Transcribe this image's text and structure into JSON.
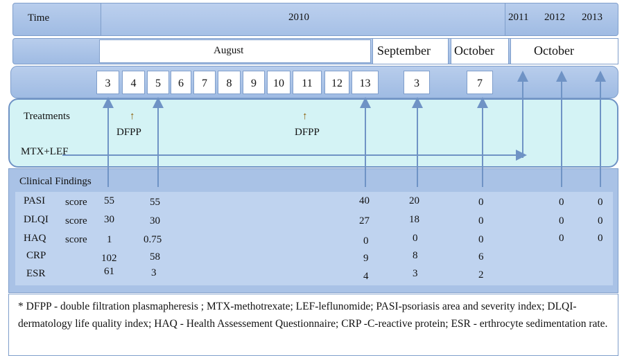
{
  "header": {
    "time_label": "Time",
    "year_2010": "2010",
    "year_2011": "2011",
    "year_2012": "2012",
    "year_2013": "2013"
  },
  "months": {
    "august": "August",
    "september": "September",
    "october_1": "October",
    "october_2": "October"
  },
  "days": [
    "3",
    "4",
    "5",
    "6",
    "7",
    "8",
    "9",
    "10",
    "11",
    "12",
    "13",
    "3",
    "7"
  ],
  "treatments": {
    "label": "Treatments",
    "dfpp_1": "DFPP",
    "dfpp_2": "DFPP",
    "mtx_lef": "MTX+LEF",
    "up_arrow": "↑"
  },
  "clinical": {
    "label": "Clinical Findings",
    "rows": [
      {
        "name": "PASI",
        "unit": "score",
        "values": [
          "55",
          "55",
          "40",
          "20",
          "0",
          "0",
          "0"
        ]
      },
      {
        "name": "DLQI",
        "unit": "score",
        "values": [
          "30",
          "30",
          "27",
          "18",
          "0",
          "0",
          "0"
        ]
      },
      {
        "name": "HAQ",
        "unit": "score",
        "values": [
          "1",
          "0.75",
          "0",
          "0",
          "0",
          "0",
          "0"
        ]
      },
      {
        "name": "CRP",
        "unit": "",
        "values": [
          "102",
          "58",
          "9",
          "8",
          "6"
        ]
      },
      {
        "name": "ESR",
        "unit": "",
        "values": [
          "61",
          "3",
          "4",
          "3",
          "2"
        ]
      }
    ]
  },
  "footnote": "* DFPP - double filtration plasmapheresis ; MTX-methotrexate; LEF-leflunomide; PASI-psoriasis area and severity index; DLQI-dermatology life quality index; HAQ - Health Assessement Questionnaire; CRP -C-reactive protein; ESR - erthrocyte sedimentation rate.",
  "colors": {
    "panel_blue": "#a9c2e6",
    "treat_bg": "#d4f3f5",
    "arrow": "#6f93c5"
  }
}
